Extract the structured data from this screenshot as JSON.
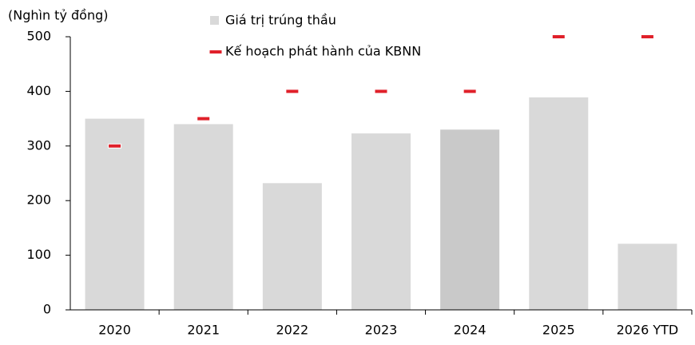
{
  "chart_data": {
    "type": "bar",
    "y_label": "(Nghìn tỷ đồng)",
    "categories": [
      "2020",
      "2021",
      "2022",
      "2023",
      "2024",
      "2025",
      "2026 YTD"
    ],
    "series": [
      {
        "name": "Giá trị trúng thầu",
        "kind": "bar",
        "color": "#d9d9d9",
        "colors": [
          "#d9d9d9",
          "#d9d9d9",
          "#d9d9d9",
          "#d9d9d9",
          "#c9c9c9",
          "#d9d9d9",
          "#d9d9d9"
        ],
        "values": [
          350,
          340,
          232,
          323,
          330,
          389,
          121
        ]
      },
      {
        "name": "Kế hoạch phát hành của KBNN",
        "kind": "dash",
        "color": "#e0202a",
        "values": [
          300,
          350,
          400,
          400,
          400,
          500,
          500
        ]
      }
    ],
    "ylim": [
      0,
      500
    ],
    "yticks": [
      0,
      100,
      200,
      300,
      400,
      500
    ],
    "grid": false
  }
}
